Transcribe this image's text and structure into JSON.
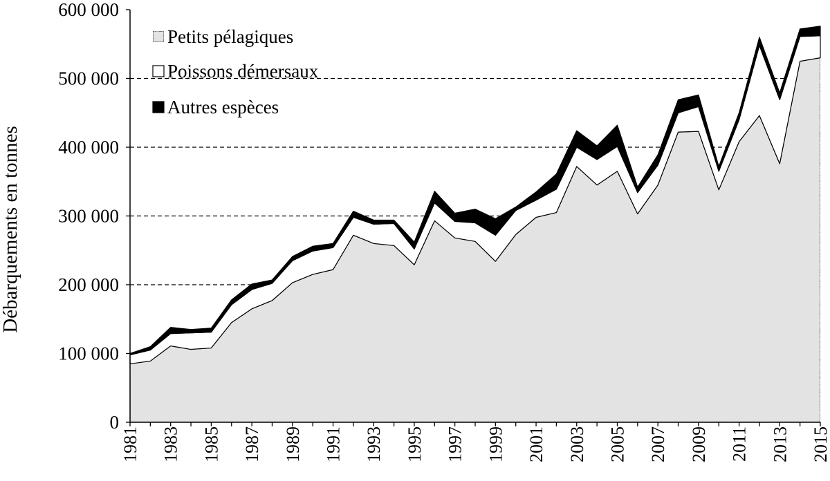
{
  "chart_data": {
    "type": "area",
    "stacked": true,
    "ylabel": "Débarquements en tonnes",
    "xlabel": "",
    "ylim": [
      0,
      600000
    ],
    "yticks": [
      0,
      100000,
      200000,
      300000,
      400000,
      500000,
      600000
    ],
    "ytick_labels": [
      "0",
      "100 000",
      "200 000",
      "300 000",
      "400 000",
      "500 000",
      "600 000"
    ],
    "xlim": [
      1981,
      2015
    ],
    "xtick_labels": [
      "1981",
      "1983",
      "1985",
      "1987",
      "1989",
      "1991",
      "1993",
      "1995",
      "1997",
      "1999",
      "2001",
      "2003",
      "2005",
      "2007",
      "2009",
      "2011",
      "2013",
      "2015"
    ],
    "gridlines": "dashed horizontal",
    "legend_position": "top-left",
    "x": [
      1981,
      1982,
      1983,
      1984,
      1985,
      1986,
      1987,
      1988,
      1989,
      1990,
      1991,
      1992,
      1993,
      1994,
      1995,
      1996,
      1997,
      1998,
      1999,
      2000,
      2001,
      2002,
      2003,
      2004,
      2005,
      2006,
      2007,
      2008,
      2009,
      2010,
      2011,
      2012,
      2013,
      2014,
      2015
    ],
    "series": [
      {
        "name": "Petits pélagiques",
        "fill": "#e2e2e2",
        "values": [
          85000,
          89000,
          111000,
          106000,
          108000,
          145000,
          165000,
          177000,
          203000,
          215000,
          222000,
          272000,
          260000,
          257000,
          229000,
          293000,
          268000,
          263000,
          234000,
          273000,
          298000,
          305000,
          372000,
          345000,
          365000,
          303000,
          345000,
          422000,
          423000,
          338000,
          408000,
          446000,
          376000,
          525000,
          530000
        ]
      },
      {
        "name": "Poissons démersaux",
        "fill": "#ffffff",
        "values": [
          13000,
          16000,
          18000,
          24000,
          23000,
          26000,
          28000,
          25000,
          32000,
          34000,
          32000,
          26000,
          28000,
          32000,
          23000,
          26000,
          24000,
          27000,
          38000,
          35000,
          25000,
          34000,
          28000,
          37000,
          36000,
          31000,
          29000,
          28000,
          36000,
          27000,
          32000,
          102000,
          93000,
          36000,
          32000
        ]
      },
      {
        "name": "Autres espèces",
        "fill": "#000000",
        "values": [
          2000,
          5000,
          9000,
          5000,
          6000,
          7000,
          8000,
          5000,
          6000,
          7000,
          6000,
          9000,
          6000,
          5000,
          10000,
          17000,
          12000,
          20000,
          24000,
          5000,
          12000,
          22000,
          24000,
          20000,
          31000,
          8000,
          15000,
          19000,
          17000,
          7000,
          10000,
          12000,
          10000,
          11000,
          14000
        ]
      }
    ]
  }
}
